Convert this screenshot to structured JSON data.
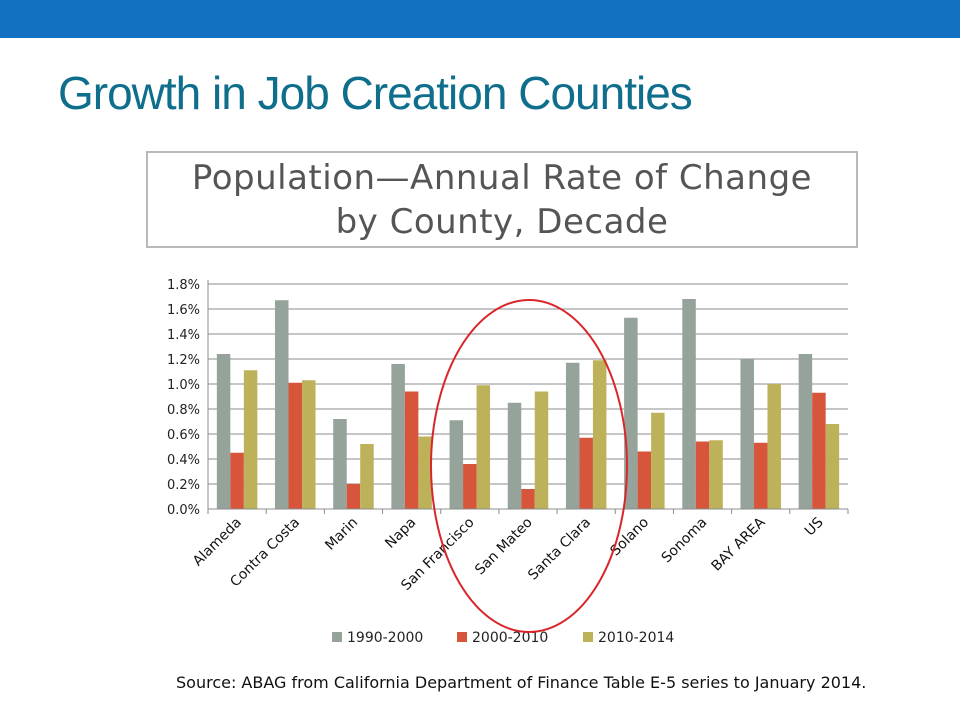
{
  "slide": {
    "title": "Growth in Job Creation Counties",
    "source": "Source: ABAG from California Department of Finance Table E-5 series to January 2014."
  },
  "colors": {
    "topbar": "#1470c2",
    "title": "#0f6e8c",
    "highlight_circle": "#d9262a"
  },
  "chart_data": {
    "type": "bar",
    "title": "Population—Annual Rate of Change by County, Decade",
    "title_lines": [
      "Population—Annual Rate of Change",
      "by County, Decade"
    ],
    "xlabel": "",
    "ylabel": "",
    "ylim": [
      0,
      1.8
    ],
    "yticks": [
      "0.0%",
      "0.2%",
      "0.4%",
      "0.6%",
      "0.8%",
      "1.0%",
      "1.2%",
      "1.4%",
      "1.6%",
      "1.8%"
    ],
    "grid": true,
    "legend_position": "bottom",
    "categories": [
      "Alameda",
      "Contra Costa",
      "Marin",
      "Napa",
      "San Francisco",
      "San Mateo",
      "Santa Clara",
      "Solano",
      "Sonoma",
      "BAY AREA",
      "US"
    ],
    "series": [
      {
        "name": "1990-2000",
        "color": "#95a39a",
        "values": [
          1.24,
          1.67,
          0.72,
          1.16,
          0.71,
          0.85,
          1.17,
          1.53,
          1.68,
          1.2,
          1.24
        ]
      },
      {
        "name": "2000-2010",
        "color": "#d6553b",
        "values": [
          0.45,
          1.01,
          0.2,
          0.94,
          0.36,
          0.16,
          0.57,
          0.46,
          0.54,
          0.53,
          0.93
        ]
      },
      {
        "name": "2010-2014",
        "color": "#bdb25a",
        "values": [
          1.11,
          1.03,
          0.52,
          0.58,
          0.99,
          0.94,
          1.19,
          0.77,
          0.55,
          1.0,
          0.68
        ]
      }
    ],
    "annotations": [
      {
        "type": "ellipse",
        "highlights": [
          "San Francisco",
          "San Mateo",
          "Santa Clara"
        ],
        "color": "#d9262a"
      }
    ]
  }
}
